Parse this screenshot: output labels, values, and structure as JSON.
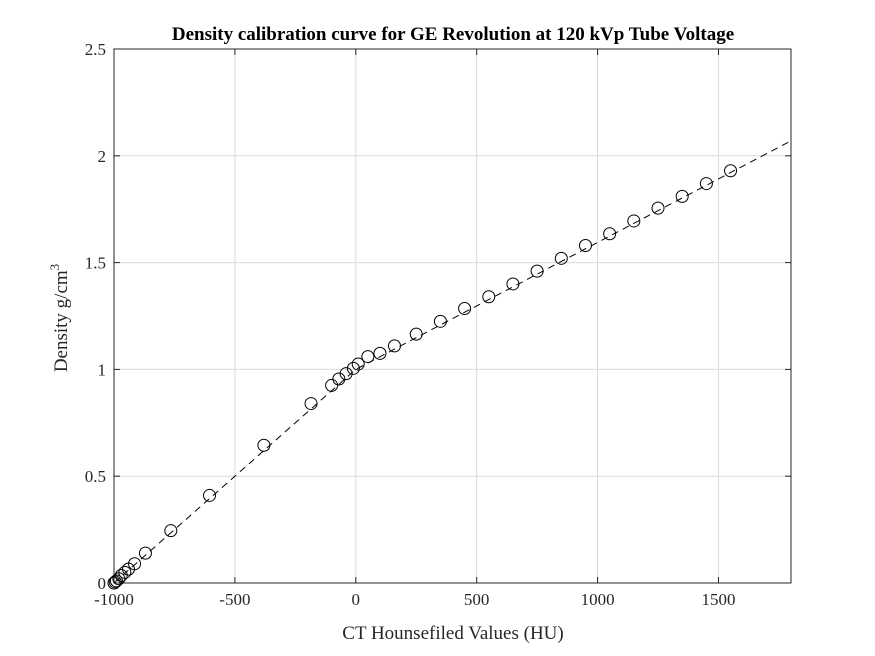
{
  "chart_data": {
    "type": "scatter",
    "title": "Density calibration curve for GE Revolution at 120 kVp Tube Voltage",
    "xlabel": "CT Hounsefiled Values (HU)",
    "ylabel_main": "Density g/cm",
    "ylabel_sup": "3",
    "xlim": [
      -1000,
      1800
    ],
    "ylim": [
      0,
      2.5
    ],
    "xticks": [
      -1000,
      -500,
      0,
      500,
      1000,
      1500
    ],
    "yticks": [
      0,
      0.5,
      1,
      1.5,
      2,
      2.5
    ],
    "xtick_labels": [
      "-1000",
      "-500",
      "0",
      "500",
      "1000",
      "1500"
    ],
    "ytick_labels": [
      "0",
      "0.5",
      "1",
      "1.5",
      "2",
      "2.5"
    ],
    "grid": true,
    "series": [
      {
        "marker": "open-circle",
        "color": "#000000",
        "x": [
          -1000,
          -995,
          -990,
          -980,
          -970,
          -955,
          -940,
          -915,
          -870,
          -765,
          -605,
          -380,
          -185,
          -100,
          -70,
          -40,
          -10,
          10,
          50,
          100,
          160,
          250,
          350,
          450,
          550,
          650,
          750,
          850,
          950,
          1050,
          1150,
          1250,
          1350,
          1450,
          1550
        ],
        "y": [
          0.0,
          0.005,
          0.01,
          0.02,
          0.035,
          0.05,
          0.065,
          0.09,
          0.14,
          0.245,
          0.41,
          0.645,
          0.84,
          0.925,
          0.955,
          0.98,
          1.005,
          1.025,
          1.06,
          1.075,
          1.11,
          1.165,
          1.225,
          1.285,
          1.34,
          1.4,
          1.46,
          1.52,
          1.58,
          1.635,
          1.695,
          1.755,
          1.81,
          1.87,
          1.93
        ]
      },
      {
        "style": "dashed-line",
        "color": "#000000",
        "x": [
          -1000,
          0,
          1800
        ],
        "y": [
          0.0,
          1.0,
          2.07
        ]
      }
    ]
  }
}
